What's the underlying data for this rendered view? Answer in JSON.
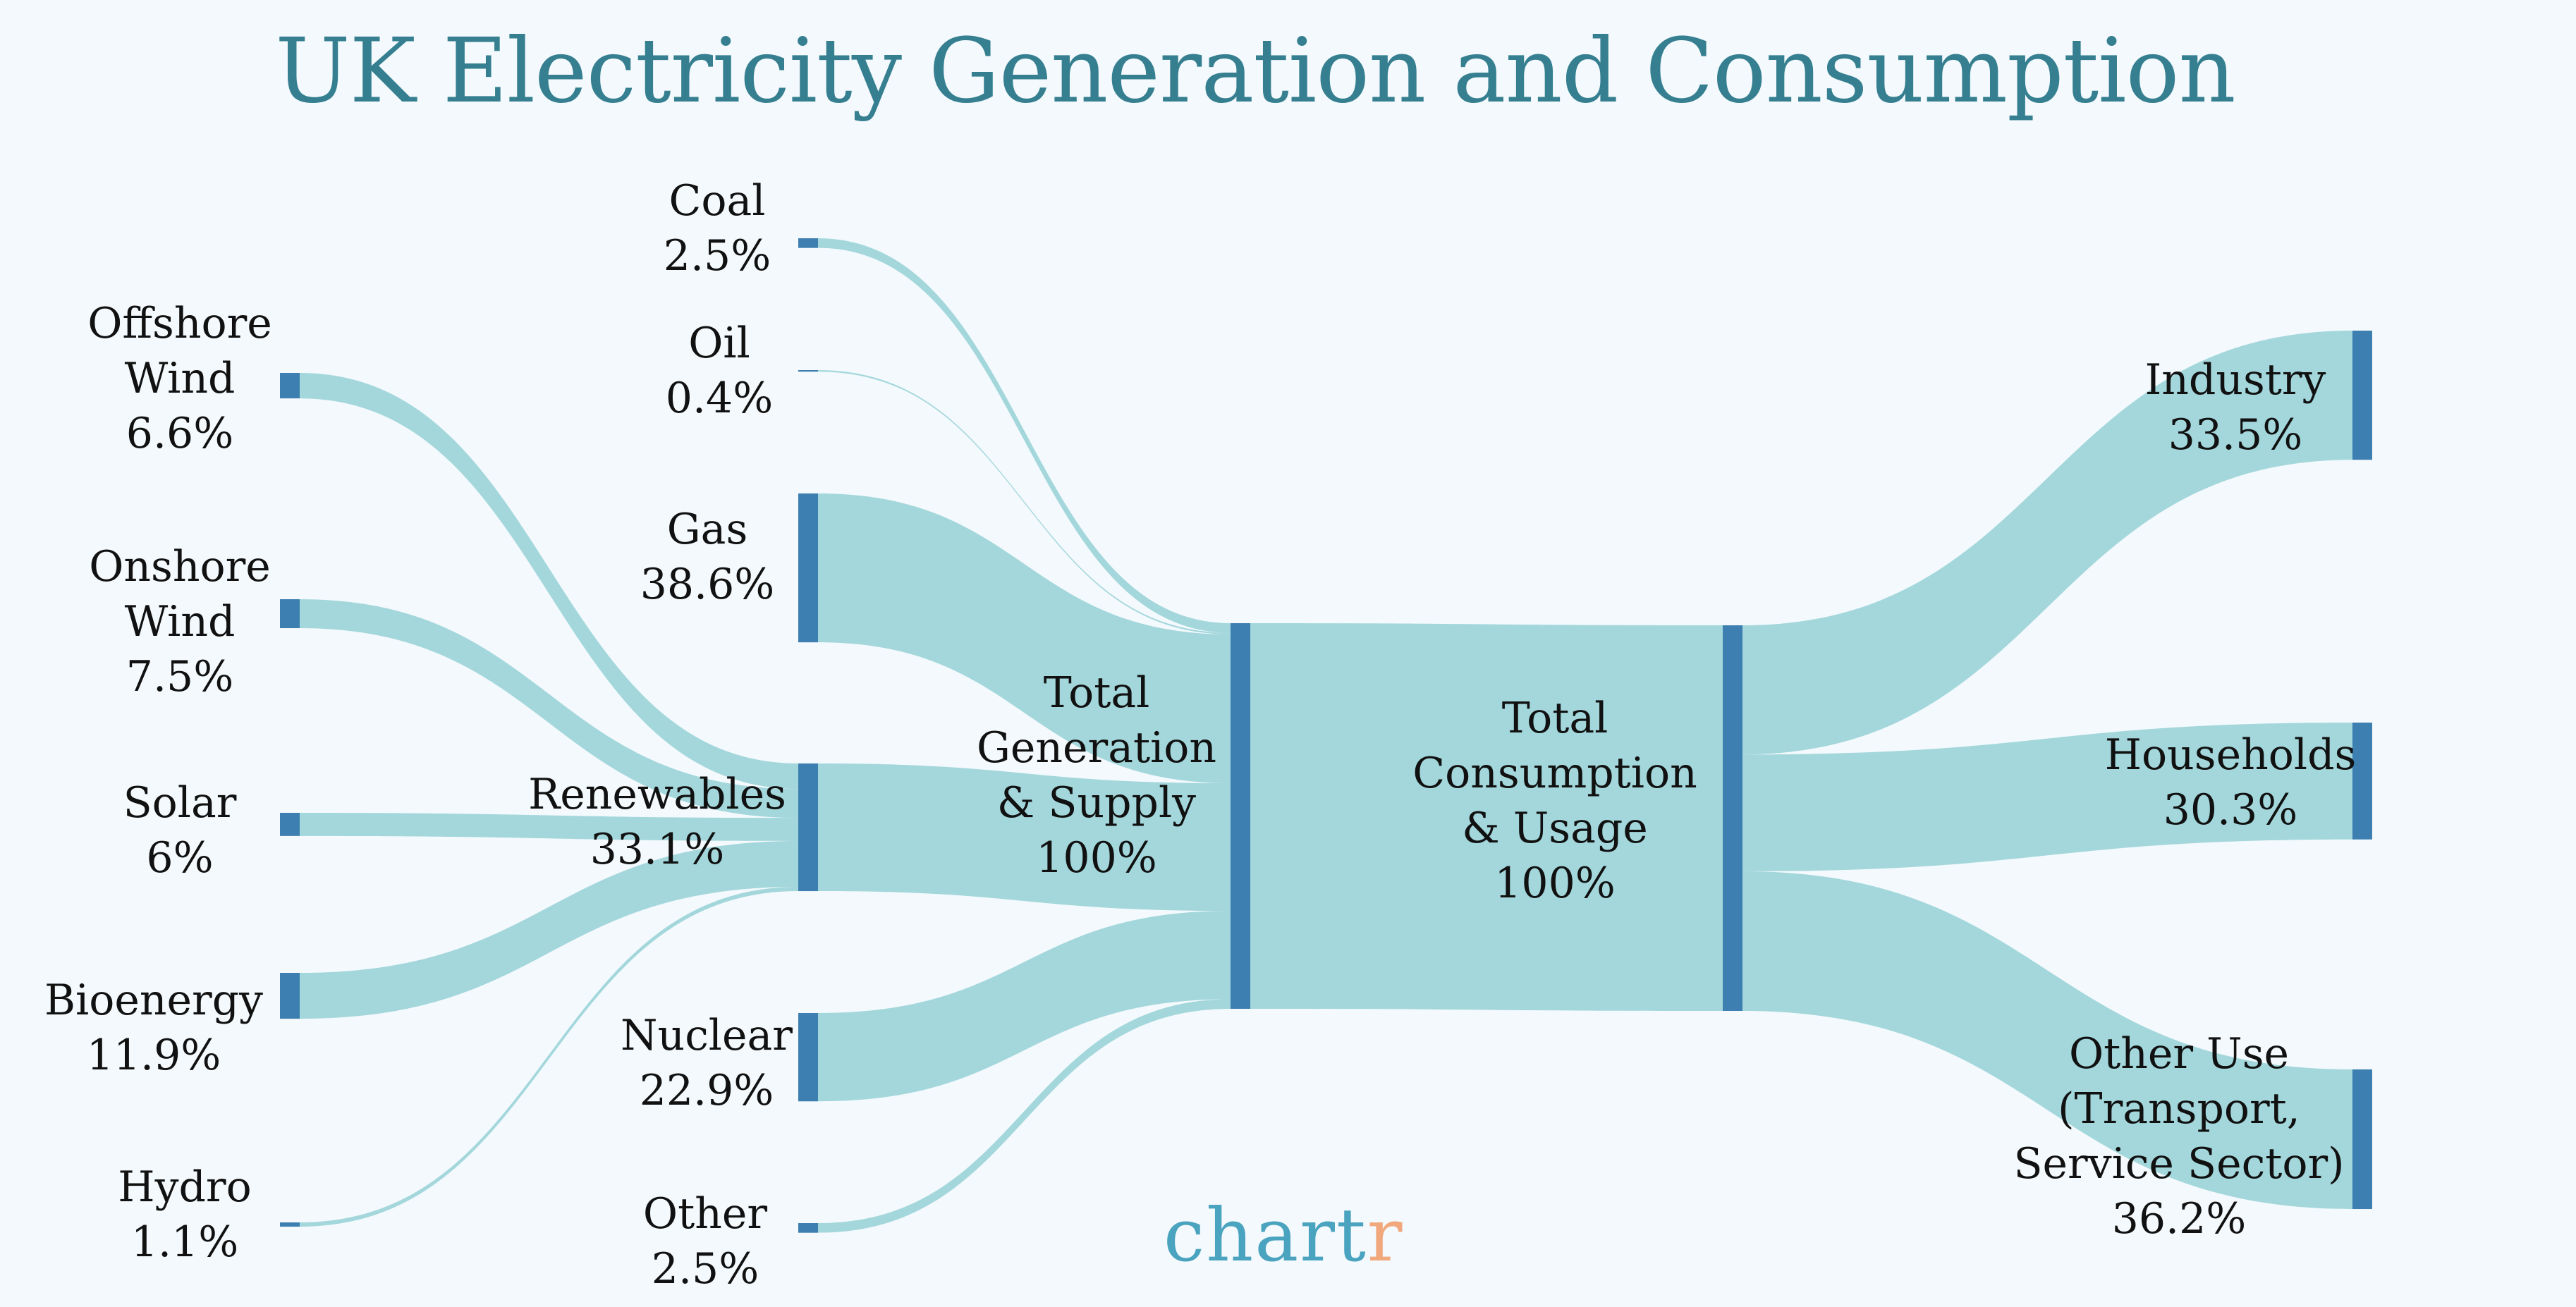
{
  "title": "UK Electricity Generation and Consumption",
  "logo": {
    "main": "chart",
    "accent": "r"
  },
  "colors": {
    "background": "#f3f9fc",
    "title": "#357f90",
    "node": "#3d7fb0",
    "link": "#a3d7dc",
    "logo_main": "#4aa3bf",
    "logo_accent": "#f0a87c"
  },
  "chart_data": {
    "type": "sankey",
    "title": "UK Electricity Generation and Consumption",
    "unit": "%",
    "nodes": [
      {
        "id": "offshore",
        "label": [
          "Offshore",
          "Wind"
        ],
        "value_label": "6.6%",
        "value": 6.6,
        "column": 0
      },
      {
        "id": "onshore",
        "label": [
          "Onshore",
          "Wind"
        ],
        "value_label": "7.5%",
        "value": 7.5,
        "column": 0
      },
      {
        "id": "solar",
        "label": [
          "Solar"
        ],
        "value_label": "6%",
        "value": 6.0,
        "column": 0
      },
      {
        "id": "bioenergy",
        "label": [
          "Bioenergy"
        ],
        "value_label": "11.9%",
        "value": 11.9,
        "column": 0
      },
      {
        "id": "hydro",
        "label": [
          "Hydro"
        ],
        "value_label": "1.1%",
        "value": 1.1,
        "column": 0
      },
      {
        "id": "coal",
        "label": [
          "Coal"
        ],
        "value_label": "2.5%",
        "value": 2.5,
        "column": 1
      },
      {
        "id": "oil",
        "label": [
          "Oil"
        ],
        "value_label": "0.4%",
        "value": 0.4,
        "column": 1
      },
      {
        "id": "gas",
        "label": [
          "Gas"
        ],
        "value_label": "38.6%",
        "value": 38.6,
        "column": 1
      },
      {
        "id": "renewables",
        "label": [
          "Renewables"
        ],
        "value_label": "33.1%",
        "value": 33.1,
        "column": 1
      },
      {
        "id": "nuclear",
        "label": [
          "Nuclear"
        ],
        "value_label": "22.9%",
        "value": 22.9,
        "column": 1
      },
      {
        "id": "other",
        "label": [
          "Other"
        ],
        "value_label": "2.5%",
        "value": 2.5,
        "column": 1
      },
      {
        "id": "total_gen",
        "label": [
          "Total",
          "Generation",
          "& Supply"
        ],
        "value_label": "100%",
        "value": 100,
        "column": 2
      },
      {
        "id": "total_cons",
        "label": [
          "Total",
          "Consumption",
          "& Usage"
        ],
        "value_label": "100%",
        "value": 100,
        "column": 3
      },
      {
        "id": "industry",
        "label": [
          "Industry"
        ],
        "value_label": "33.5%",
        "value": 33.5,
        "column": 4
      },
      {
        "id": "households",
        "label": [
          "Households"
        ],
        "value_label": "30.3%",
        "value": 30.3,
        "column": 4
      },
      {
        "id": "other_use",
        "label": [
          "Other Use",
          "(Transport,",
          "Service Sector)"
        ],
        "value_label": "36.2%",
        "value": 36.2,
        "column": 4
      }
    ],
    "links": [
      {
        "source": "offshore",
        "target": "renewables",
        "value": 6.6
      },
      {
        "source": "onshore",
        "target": "renewables",
        "value": 7.5
      },
      {
        "source": "solar",
        "target": "renewables",
        "value": 6.0
      },
      {
        "source": "bioenergy",
        "target": "renewables",
        "value": 11.9
      },
      {
        "source": "hydro",
        "target": "renewables",
        "value": 1.1
      },
      {
        "source": "coal",
        "target": "total_gen",
        "value": 2.5
      },
      {
        "source": "oil",
        "target": "total_gen",
        "value": 0.4
      },
      {
        "source": "gas",
        "target": "total_gen",
        "value": 38.6
      },
      {
        "source": "renewables",
        "target": "total_gen",
        "value": 33.1
      },
      {
        "source": "nuclear",
        "target": "total_gen",
        "value": 22.9
      },
      {
        "source": "other",
        "target": "total_gen",
        "value": 2.5
      },
      {
        "source": "total_gen",
        "target": "total_cons",
        "value": 100
      },
      {
        "source": "total_cons",
        "target": "industry",
        "value": 33.5
      },
      {
        "source": "total_cons",
        "target": "households",
        "value": 30.3
      },
      {
        "source": "total_cons",
        "target": "other_use",
        "value": 36.2
      }
    ]
  }
}
